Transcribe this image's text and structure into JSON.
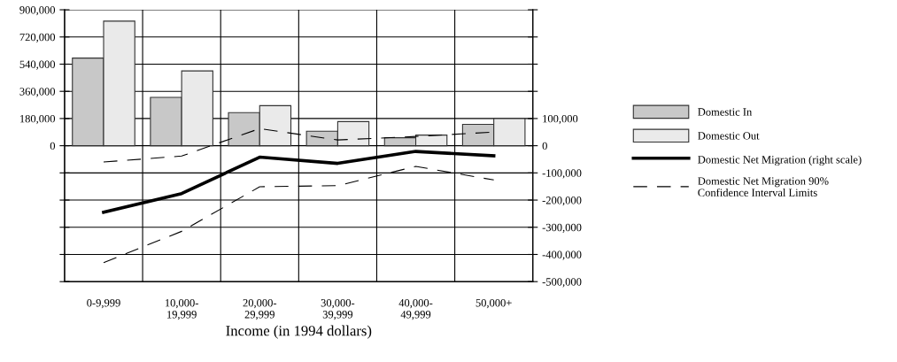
{
  "chart_data": {
    "type": "bar",
    "xlabel": "Income (in 1994 dollars)",
    "categories": [
      "0-9,999",
      "10,000-\n19,999",
      "20,000-\n29,999",
      "30,000-\n39,999",
      "40,000-\n49,999",
      "50,000+"
    ],
    "series": [
      {
        "name": "Domestic In",
        "color": "#c8c8c8",
        "values": [
          580000,
          320000,
          219000,
          96000,
          53000,
          141000
        ]
      },
      {
        "name": "Domestic Out",
        "color": "#eaeaea",
        "values": [
          825000,
          495000,
          265000,
          160000,
          70000,
          180000
        ]
      },
      {
        "name": "Domestic Net Migration (right scale)",
        "type": "line",
        "axis": "y2",
        "color": "#000000",
        "line_style": "solid",
        "values": [
          -245000,
          -176000,
          -42000,
          -65000,
          -21000,
          -37000
        ]
      },
      {
        "name": "Domestic Net Migration 90%\nConfidence Interval Limits",
        "type": "line",
        "axis": "y2",
        "color": "#000000",
        "line_style": "dashed",
        "values": [
          -60000,
          -38000,
          63000,
          21000,
          34000,
          50000
        ]
      },
      {
        "type": "line",
        "axis": "y2",
        "color": "#000000",
        "line_style": "dashed",
        "values": [
          -430000,
          -315000,
          -151000,
          -147000,
          -76000,
          -126000
        ]
      }
    ],
    "ylim": [
      -900000,
      900000
    ],
    "yticks": [
      {
        "value": -900000,
        "label": null
      },
      {
        "value": -720000,
        "label": null
      },
      {
        "value": -540000,
        "label": null
      },
      {
        "value": -360000,
        "label": null
      },
      {
        "value": -180000,
        "label": null
      },
      {
        "value": 0,
        "label": "0"
      },
      {
        "value": 180000,
        "label": "180,000"
      },
      {
        "value": 360000,
        "label": "360,000"
      },
      {
        "value": 540000,
        "label": "540,000"
      },
      {
        "value": 720000,
        "label": "720,000"
      },
      {
        "value": 900000,
        "label": "900,000"
      }
    ],
    "y2lim": [
      -500000,
      500000
    ],
    "y2ticks": [
      {
        "value": -500000,
        "label": "-500,000"
      },
      {
        "value": -400000,
        "label": "-400,000"
      },
      {
        "value": -300000,
        "label": "-300,000"
      },
      {
        "value": -200000,
        "label": "-200,000"
      },
      {
        "value": -100000,
        "label": "-100,000"
      },
      {
        "value": 0,
        "label": "0"
      },
      {
        "value": 100000,
        "label": "100,000"
      },
      {
        "value": 200000,
        "label": null
      },
      {
        "value": 300000,
        "label": null
      },
      {
        "value": 400000,
        "label": null
      },
      {
        "value": 500000,
        "label": null
      }
    ],
    "grid": true,
    "legend": "right"
  }
}
